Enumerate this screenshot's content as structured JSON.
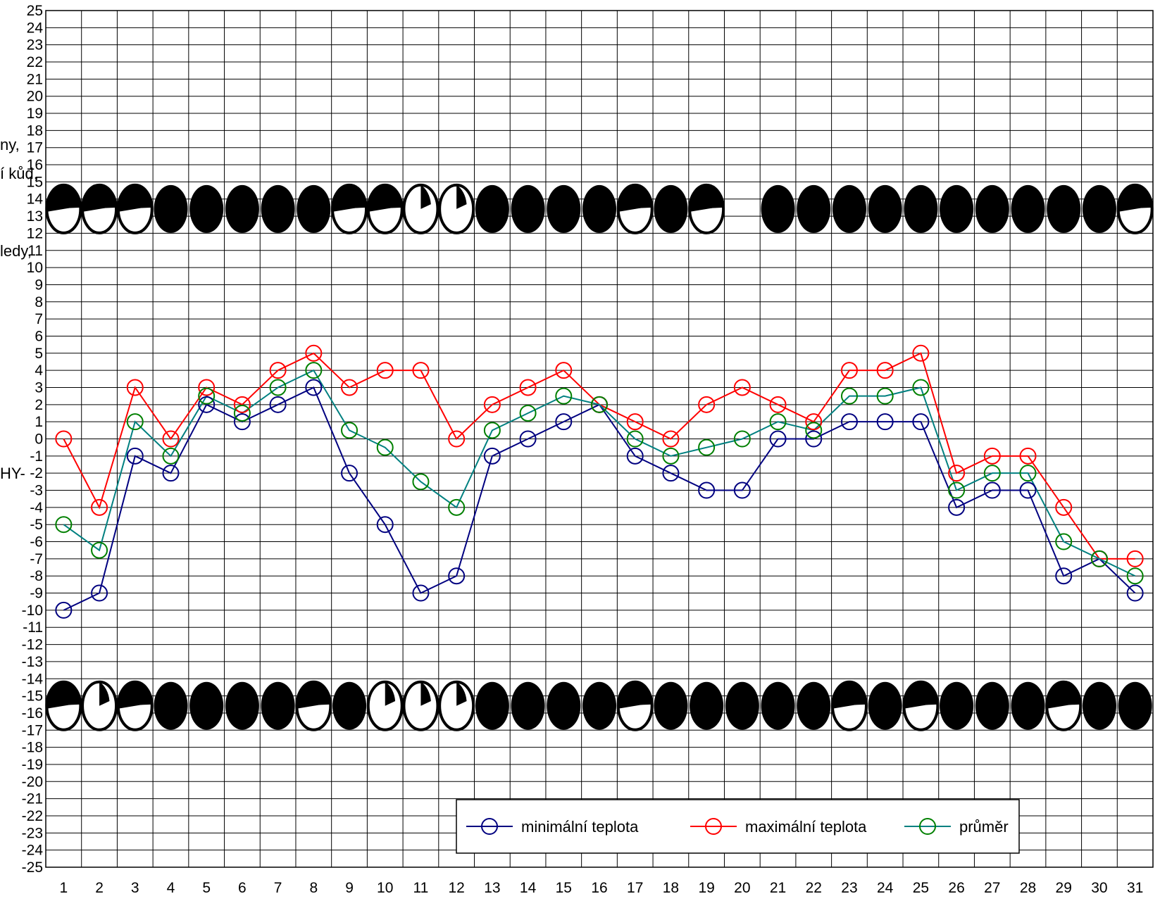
{
  "chart_data": {
    "type": "line",
    "x": [
      1,
      2,
      3,
      4,
      5,
      6,
      7,
      8,
      9,
      10,
      11,
      12,
      13,
      14,
      15,
      16,
      17,
      18,
      19,
      20,
      21,
      22,
      23,
      24,
      25,
      26,
      27,
      28,
      29,
      30,
      31
    ],
    "ylim": [
      -25,
      25
    ],
    "grid": true,
    "legend_position": "bottom-center",
    "series": [
      {
        "name": "minimální teplota",
        "color": "#000080",
        "values": [
          -10,
          -9,
          -1,
          -2,
          2,
          1,
          2,
          3,
          -2,
          -5,
          -9,
          -8,
          -1,
          0,
          1,
          2,
          -1,
          -2,
          -3,
          -3,
          0,
          0,
          1,
          1,
          1,
          -4,
          -3,
          -3,
          -8,
          -7,
          -9
        ]
      },
      {
        "name": "maximální teplota",
        "color": "#ff0000",
        "values": [
          0,
          -4,
          3,
          0,
          3,
          2,
          4,
          5,
          3,
          4,
          4,
          0,
          2,
          3,
          4,
          2,
          1,
          0,
          2,
          3,
          2,
          1,
          4,
          4,
          5,
          -2,
          -1,
          -1,
          -4,
          -7,
          -7
        ]
      },
      {
        "name": "průměr",
        "color": "#008080",
        "marker_color": "#008000",
        "values": [
          -5,
          -6.5,
          1,
          -1,
          2.5,
          1.5,
          3,
          4,
          0.5,
          -0.5,
          -2.5,
          -4,
          0.5,
          1.5,
          2.5,
          2,
          0,
          -1,
          -0.5,
          0,
          1,
          0.5,
          2.5,
          2.5,
          3,
          -3,
          -2,
          -2,
          -6,
          -7,
          -8
        ]
      }
    ],
    "cloud_icons_top": [
      "heavy",
      "heavy",
      "heavy",
      "full",
      "full",
      "full",
      "full",
      "full",
      "heavy",
      "heavy",
      "light",
      "light",
      "full",
      "full",
      "full",
      "full",
      "heavy",
      "full",
      "heavy",
      "",
      "full",
      "full",
      "full",
      "full",
      "full",
      "full",
      "full",
      "full",
      "full",
      "full",
      "heavy"
    ],
    "cloud_icons_bottom": [
      "heavy",
      "light",
      "heavy",
      "full",
      "full",
      "full",
      "full",
      "heavy",
      "full",
      "light",
      "light",
      "light",
      "full",
      "full",
      "full",
      "full",
      "heavy",
      "full",
      "full",
      "full",
      "full",
      "full",
      "heavy",
      "full",
      "heavy",
      "full",
      "full",
      "full",
      "heavy",
      "full",
      "full"
    ],
    "side_labels": [
      {
        "text": "ny,",
        "anchor_y": 17.2
      },
      {
        "text": "í kůd,",
        "anchor_y": 15.5
      },
      {
        "text": "ledy,",
        "anchor_y": 11
      },
      {
        "text": "HY-",
        "anchor_y": -2
      }
    ]
  }
}
